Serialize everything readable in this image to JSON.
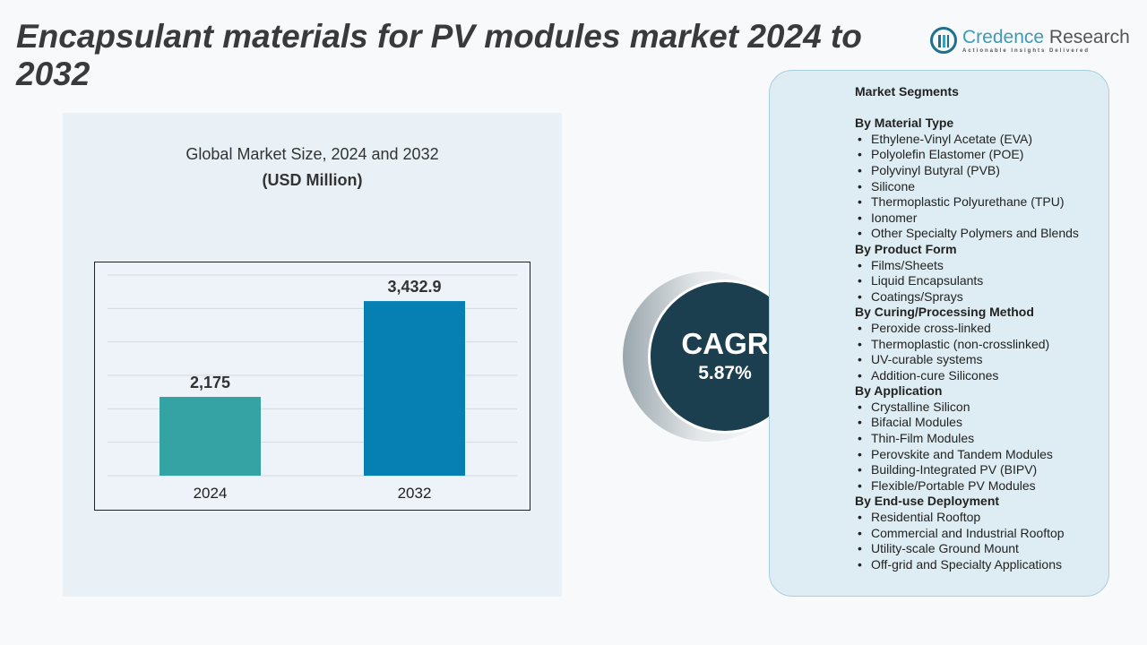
{
  "title": "Encapsulant materials for PV modules market 2024 to 2032",
  "logo": {
    "name_a": "Credence",
    "name_b": "Research",
    "tagline": "Actionable Insights Delivered"
  },
  "chart_title": "Global Market Size, 2024 and 2032",
  "chart_unit": "(USD Million)",
  "chart_data": {
    "type": "bar",
    "title": "Global Market Size, 2024 and 2032",
    "ylabel": "(USD Million)",
    "categories": [
      "2024",
      "2032"
    ],
    "values": [
      2175,
      3432.9
    ],
    "value_labels": [
      "2,175",
      "3,432.9"
    ],
    "colors": [
      "#35a3a3",
      "#067fb3"
    ],
    "ylim": [
      1140,
      3775
    ],
    "grid": true
  },
  "cagr": {
    "label": "CAGR",
    "value": "5.87%",
    "color": "#1c3f4f"
  },
  "segments": {
    "heading": "Market Segments",
    "groups": [
      {
        "title": "By Material Type",
        "items": [
          "Ethylene-Vinyl Acetate (EVA)",
          "Polyolefin Elastomer (POE)",
          "Polyvinyl Butyral (PVB)",
          "Silicone",
          "Thermoplastic Polyurethane (TPU)",
          "Ionomer",
          "Other Specialty Polymers and Blends"
        ]
      },
      {
        "title": "By Product Form",
        "items": [
          "Films/Sheets",
          "Liquid Encapsulants",
          "Coatings/Sprays"
        ]
      },
      {
        "title": "By Curing/Processing Method",
        "items": [
          "Peroxide cross-linked",
          "Thermoplastic (non-crosslinked)",
          "UV-curable systems",
          "Addition-cure Silicones"
        ]
      },
      {
        "title": "By Application",
        "items": [
          "Crystalline Silicon",
          "Bifacial Modules",
          "Thin-Film Modules",
          "Perovskite and Tandem Modules",
          "Building-Integrated PV (BIPV)",
          "Flexible/Portable PV Modules"
        ]
      },
      {
        "title": "By End-use Deployment",
        "items": [
          "Residential Rooftop",
          "Commercial and Industrial Rooftop",
          "Utility-scale Ground Mount",
          "Off-grid and Specialty Applications"
        ]
      }
    ]
  }
}
